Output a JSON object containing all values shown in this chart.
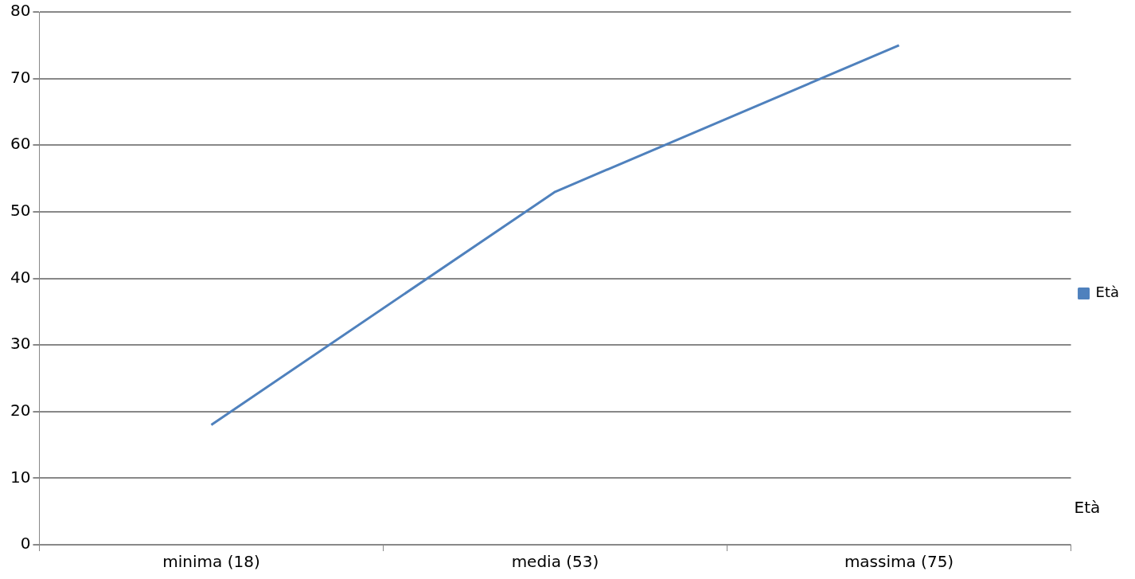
{
  "chart_data": {
    "type": "line",
    "categories": [
      "minima (18)",
      "media (53)",
      "massima (75)"
    ],
    "series": [
      {
        "name": "Età",
        "color": "#4f81bd",
        "values": [
          18,
          53,
          75
        ]
      }
    ],
    "ylim": [
      0,
      80
    ],
    "yticks": [
      0,
      10,
      20,
      30,
      40,
      50,
      60,
      70,
      80
    ],
    "grid": "y",
    "legend": "right",
    "marker": "none",
    "line_style": "solid",
    "annotations": [
      "Età"
    ]
  }
}
